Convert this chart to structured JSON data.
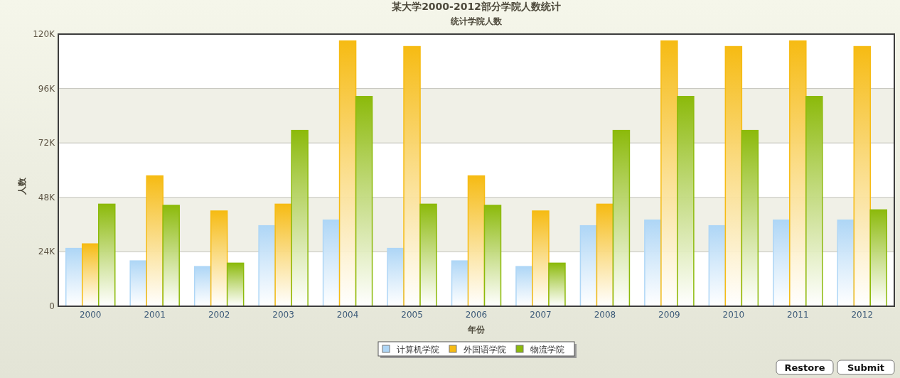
{
  "chart_data": {
    "type": "bar",
    "title": "某大学2000-2012部分学院人数统计",
    "subtitle": "统计学院人数",
    "xlabel": "年份",
    "ylabel": "人数",
    "categories": [
      "2000",
      "2001",
      "2002",
      "2003",
      "2004",
      "2005",
      "2006",
      "2007",
      "2008",
      "2009",
      "2010",
      "2011",
      "2012"
    ],
    "series": [
      {
        "name": "计算机学院",
        "color": "#aed6f6",
        "values": [
          25500,
          20000,
          17500,
          35500,
          38000,
          25500,
          20000,
          17500,
          35500,
          38000,
          35500,
          38000,
          38000
        ]
      },
      {
        "name": "外国语学院",
        "color": "#f6bb13",
        "values": [
          27500,
          57500,
          42000,
          45000,
          117000,
          114500,
          57500,
          42000,
          45000,
          117000,
          114500,
          117000,
          114500
        ]
      },
      {
        "name": "物流学院",
        "color": "#8cba0b",
        "values": [
          45000,
          44500,
          19000,
          77500,
          92500,
          45000,
          44500,
          19000,
          77500,
          92500,
          77500,
          92500,
          42500
        ]
      }
    ],
    "ylim": [
      0,
      120000
    ],
    "yticks": [
      0,
      {
        "value": 24000,
        "label": "24K"
      },
      {
        "value": 48000,
        "label": "48K"
      },
      {
        "value": 72000,
        "label": "72K"
      },
      {
        "value": 96000,
        "label": "96K"
      },
      {
        "value": 120000,
        "label": "120K"
      }
    ],
    "grid": "y",
    "legend": "bottom",
    "annotations": [
      "Restore",
      "Submit"
    ]
  }
}
